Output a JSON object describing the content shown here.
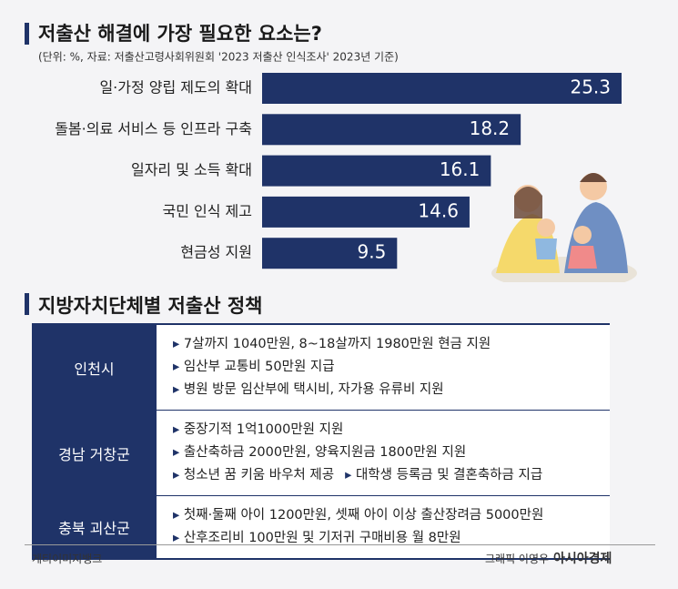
{
  "chart_data": {
    "type": "bar",
    "orientation": "horizontal",
    "title": "저출산 해결에 가장 필요한 요소는?",
    "subtitle": "(단위: %, 자료: 저출산고령사회위원회 '2023 저출산 인식조사' 2023년 기준)",
    "categories": [
      "일·가정 양립 제도의 확대",
      "돌봄·의료 서비스 등 인프라 구축",
      "일자리 및 소득 확대",
      "국민 인식 제고",
      "현금성 지원"
    ],
    "values": [
      25.3,
      18.2,
      16.1,
      14.6,
      9.5
    ],
    "color": "#1f3368"
  },
  "policy": {
    "title": "지방자치단체별 저출산 정책",
    "rows": [
      {
        "region": "인천시",
        "lines": [
          [
            "7살까지 1040만원, 8~18살까지 1980만원 현금 지원"
          ],
          [
            "임산부 교통비 50만원 지급"
          ],
          [
            "병원 방문 임산부에 택시비, 자가용 유류비 지원"
          ]
        ]
      },
      {
        "region": "경남 거창군",
        "lines": [
          [
            "중장기적 1억1000만원 지원"
          ],
          [
            "출산축하금 2000만원, 양육지원금 1800만원 지원"
          ],
          [
            "청소년 꿈 키움 바우처 제공",
            "대학생 등록금 및 결혼축하금 지급"
          ]
        ]
      },
      {
        "region": "충북 괴산군",
        "lines": [
          [
            "첫째·둘째 아이 1200만원, 셋째 아이 이상 출산장려금 5000만원"
          ],
          [
            "산후조리비 100만원 및 기저귀 구매비용 월 8만원"
          ]
        ]
      }
    ]
  },
  "footer": {
    "photo_credit": "게티이미지뱅크",
    "graphic_credit": "그래픽 이영우",
    "publisher": "아시아경제"
  }
}
